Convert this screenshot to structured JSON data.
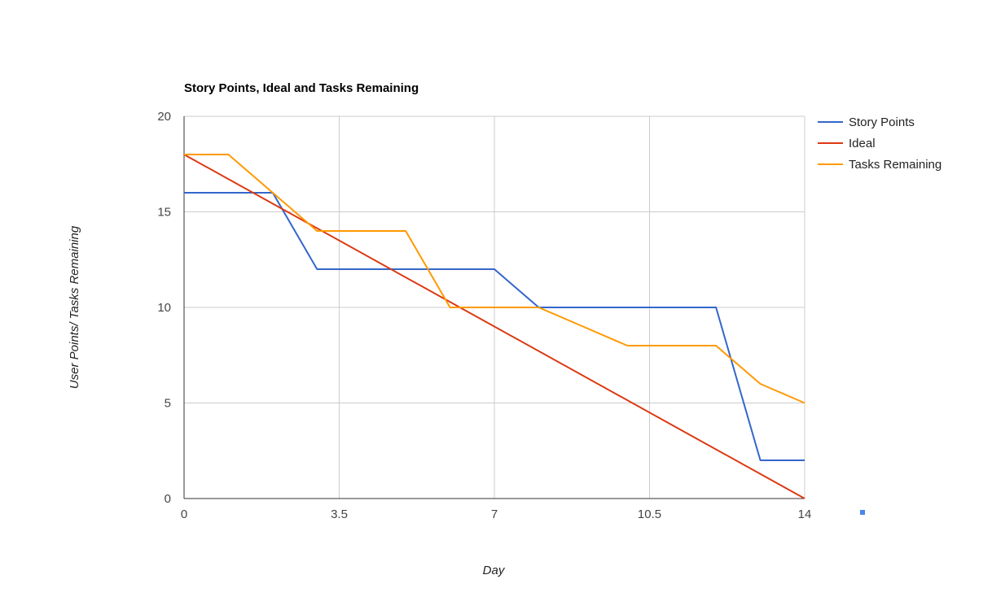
{
  "chart_data": {
    "type": "line",
    "title": "Story Points, Ideal and Tasks Remaining",
    "xlabel": "Day",
    "ylabel": "User Points/ Tasks Remaining",
    "xlim": [
      0,
      14
    ],
    "ylim": [
      0,
      20
    ],
    "x_ticks": [
      "0",
      "3.5",
      "7",
      "10.5",
      "14"
    ],
    "y_ticks": [
      "0",
      "5",
      "10",
      "15",
      "20"
    ],
    "grid": true,
    "legend_position": "right",
    "series": [
      {
        "name": "Story Points",
        "color": "#3366cc",
        "x": [
          0,
          1,
          2,
          3,
          4,
          5,
          6,
          7,
          8,
          9,
          10,
          11,
          12,
          13,
          14
        ],
        "y": [
          16,
          16,
          16,
          12,
          12,
          12,
          12,
          12,
          10,
          10,
          10,
          10,
          10,
          2,
          2
        ]
      },
      {
        "name": "Ideal",
        "color": "#dc3912",
        "x": [
          0,
          14
        ],
        "y": [
          18,
          0
        ]
      },
      {
        "name": "Tasks Remaining",
        "color": "#ff9900",
        "x": [
          0,
          1,
          2,
          3,
          4,
          5,
          6,
          7,
          8,
          9,
          10,
          11,
          12,
          13,
          14
        ],
        "y": [
          18,
          18,
          16,
          14,
          14,
          14,
          10,
          10,
          10,
          9,
          8,
          8,
          8,
          6,
          5
        ]
      }
    ]
  }
}
